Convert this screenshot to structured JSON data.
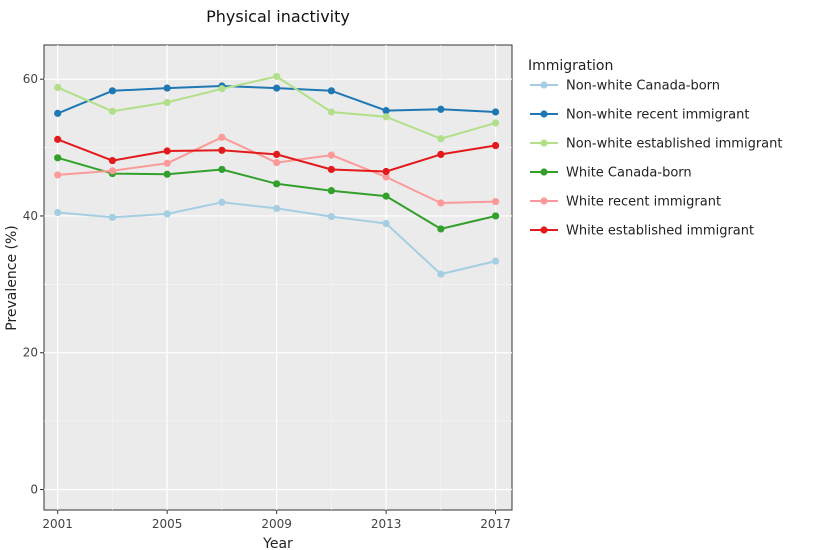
{
  "chart_data": {
    "type": "line",
    "title": "Physical inactivity",
    "xlabel": "Year",
    "ylabel": "Prevalence (%)",
    "x": [
      2001,
      2003,
      2005,
      2007,
      2009,
      2011,
      2013,
      2015,
      2017
    ],
    "xlim": [
      2000.5,
      2017.6
    ],
    "ylim": [
      -3,
      65
    ],
    "x_ticks": [
      2001,
      2005,
      2009,
      2013,
      2017
    ],
    "y_ticks": [
      0,
      20,
      40,
      60
    ],
    "grid": true,
    "legend": {
      "title": "Immigration",
      "placement": "right"
    },
    "series": [
      {
        "name": "Non-white Canada-born",
        "color": "#a6cee3",
        "values": [
          40.5,
          39.8,
          40.3,
          42.0,
          41.1,
          39.9,
          38.9,
          31.5,
          33.4
        ]
      },
      {
        "name": "Non-white recent immigrant",
        "color": "#1f78b4",
        "values": [
          55.0,
          58.3,
          58.7,
          59.0,
          58.7,
          58.3,
          55.4,
          55.6,
          55.2
        ]
      },
      {
        "name": "Non-white established immigrant",
        "color": "#b2df8a",
        "values": [
          58.8,
          55.3,
          56.6,
          58.6,
          60.4,
          55.2,
          54.5,
          51.3,
          53.6
        ]
      },
      {
        "name": "White Canada-born",
        "color": "#33a02c",
        "values": [
          48.5,
          46.2,
          46.1,
          46.8,
          44.7,
          43.7,
          42.9,
          38.1,
          40.0
        ]
      },
      {
        "name": "White recent immigrant",
        "color": "#fb9a99",
        "values": [
          46.0,
          46.6,
          47.7,
          51.5,
          47.8,
          48.9,
          45.7,
          41.9,
          42.1
        ]
      },
      {
        "name": "White established immigrant",
        "color": "#e31a1c",
        "values": [
          51.2,
          48.1,
          49.5,
          49.6,
          49.0,
          46.8,
          46.5,
          49.0,
          50.3
        ]
      }
    ]
  }
}
